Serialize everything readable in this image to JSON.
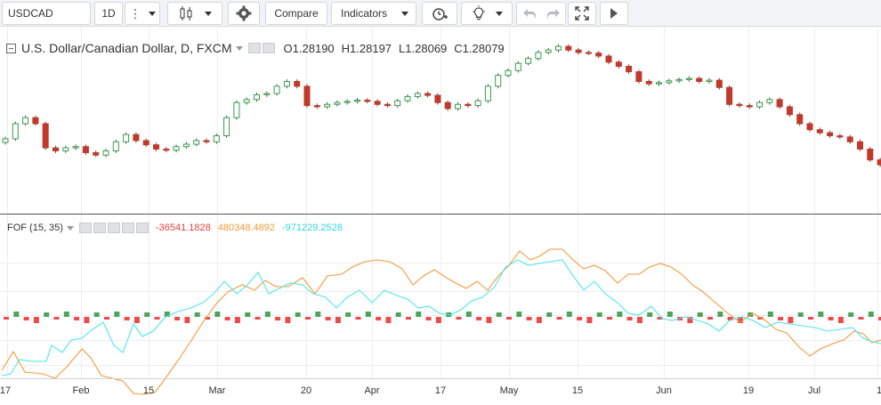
{
  "toolbar": {
    "symbol": "USDCAD",
    "interval": "1D",
    "compare_label": "Compare",
    "indicators_label": "Indicators"
  },
  "main_legend": {
    "title": "U.S. Dollar/Canadian Dollar, D, FXCM",
    "open_key": "O",
    "open": "1.28190",
    "high_key": "H",
    "high": "1.28197",
    "low_key": "L",
    "low": "1.28069",
    "close_key": "C",
    "close": "1.28079"
  },
  "indicator_legend": {
    "name": "FOF (15, 35)",
    "value1": "-36541.1828",
    "value2": "480348.4892",
    "value3": "-971229.2528",
    "color1": "#e8403f",
    "color2": "#f39a3b",
    "color3": "#31d7e0"
  },
  "xaxis": {
    "labels": [
      "17",
      "Feb",
      "15",
      "Mar",
      "20",
      "Apr",
      "17",
      "May",
      "15",
      "Jun",
      "19",
      "Jul",
      "1"
    ]
  },
  "colors": {
    "up": "#3a9c4d",
    "down": "#c0392b",
    "hist_up": "#4aa55a",
    "hist_down": "#ef4a4a",
    "orange": "#f39a3b",
    "cyan": "#4fe6ec",
    "grid": "#eeeeee",
    "divider": "#555555"
  },
  "chart_data": {
    "type": "candlestick",
    "series_name": "U.S. Dollar/Canadian Dollar, D, FXCM",
    "closes": [
      1.2665,
      1.269,
      1.27,
      1.269,
      1.265,
      1.2645,
      1.265,
      1.2652,
      1.2642,
      1.2638,
      1.2645,
      1.266,
      1.2672,
      1.2662,
      1.2655,
      1.2648,
      1.2646,
      1.2652,
      1.2656,
      1.2662,
      1.266,
      1.267,
      1.27,
      1.2725,
      1.273,
      1.2738,
      1.274,
      1.2752,
      1.276,
      1.2752,
      1.272,
      1.2718,
      1.2722,
      1.2725,
      1.2727,
      1.2729,
      1.2727,
      1.2722,
      1.272,
      1.2728,
      1.2735,
      1.274,
      1.2737,
      1.2725,
      1.2715,
      1.2722,
      1.272,
      1.2728,
      1.2752,
      1.277,
      1.2778,
      1.279,
      1.2798,
      1.2808,
      1.2812,
      1.2818,
      1.2812,
      1.2808,
      1.2807,
      1.2802,
      1.2792,
      1.2785,
      1.2776,
      1.276,
      1.2756,
      1.2758,
      1.2761,
      1.2763,
      1.2765,
      1.276,
      1.2762,
      1.275,
      1.2722,
      1.272,
      1.2718,
      1.2725,
      1.273,
      1.2718,
      1.2705,
      1.269,
      1.268,
      1.2675,
      1.267,
      1.2668,
      1.266,
      1.2648,
      1.263,
      1.2622
    ],
    "panes": [
      "price",
      "FOF (15, 35)"
    ]
  }
}
